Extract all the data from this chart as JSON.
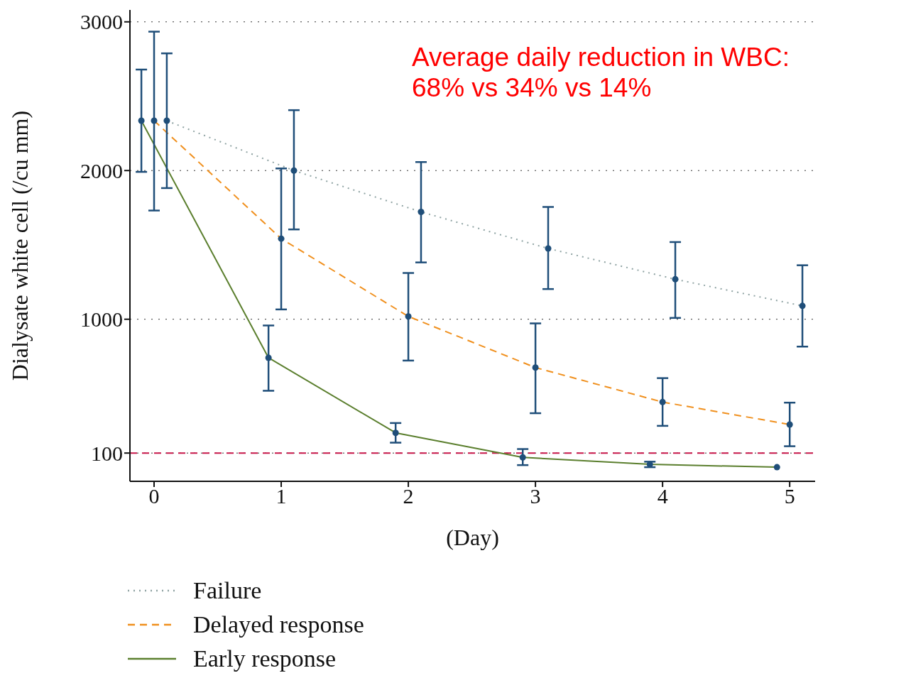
{
  "chart_data": {
    "type": "line",
    "xlabel": "(Day)",
    "ylabel": "Dialysate white cell (/cu mm)",
    "annotations": [
      "Average daily reduction in WBC:\n68% vs 34% vs 14%"
    ],
    "xlim": [
      -0.19,
      5.2
    ],
    "xticks": [
      0,
      1,
      2,
      3,
      4,
      5
    ],
    "ylim": [
      -90,
      3080
    ],
    "yticks": [
      100,
      1000,
      2000,
      3000
    ],
    "grid": "y",
    "legend": "bottom",
    "ref_lines": [
      {
        "axis": "y",
        "value": 100,
        "color": "#c8174a",
        "line_style": "dashed"
      }
    ],
    "series": [
      {
        "name": "Failure",
        "color": "#8fa3a3",
        "line_style": "dotted",
        "x": [
          0.1,
          1.1,
          2.1,
          3.1,
          4.1,
          5.1
        ],
        "values": [
          2335,
          2000,
          1722,
          1476,
          1269,
          1090
        ]
      },
      {
        "name": "Delayed response",
        "color": "#f0901e",
        "line_style": "dashed",
        "x": [
          0,
          1,
          2,
          3,
          4,
          5
        ],
        "values": [
          2335,
          1542,
          1019,
          675,
          443,
          292
        ]
      },
      {
        "name": "Early response",
        "color": "#5b7f2e",
        "line_style": "solid",
        "x": [
          -0.1,
          0.9,
          1.9,
          2.9,
          3.9,
          4.9
        ],
        "values": [
          2335,
          741,
          236,
          71,
          24,
          5
        ]
      },
      {
        "type": "scatter",
        "color": "#1f4e79",
        "marker": "circle",
        "x": [
          0.1,
          1.1,
          2.1,
          3.1,
          4.1,
          5.1
        ],
        "values": [
          2335,
          2000,
          1722,
          1476,
          1269,
          1090
        ],
        "errors": [
          [
            1882,
            2788
          ],
          [
            1604,
            2406
          ],
          [
            1382,
            2057
          ],
          [
            1203,
            1755
          ],
          [
            1009,
            1519
          ],
          [
            816,
            1363
          ]
        ]
      },
      {
        "type": "scatter",
        "color": "#1f4e79",
        "marker": "circle",
        "x": [
          0,
          1,
          2,
          3,
          4,
          5
        ],
        "values": [
          2335,
          1542,
          1019,
          675,
          443,
          292
        ],
        "errors": [
          [
            1731,
            2934
          ],
          [
            1066,
            2014
          ],
          [
            722,
            1311
          ],
          [
            368,
            972
          ],
          [
            283,
            604
          ],
          [
            146,
            439
          ]
        ]
      },
      {
        "type": "scatter",
        "color": "#1f4e79",
        "marker": "circle",
        "x": [
          -0.1,
          0.9,
          1.9,
          2.9,
          3.9,
          4.9
        ],
        "values": [
          2335,
          741,
          236,
          71,
          24,
          5
        ],
        "errors": [
          [
            1991,
            2679
          ],
          [
            519,
            958
          ],
          [
            170,
            302
          ],
          [
            19,
            127
          ],
          [
            5,
            42
          ],
          null
        ]
      }
    ]
  }
}
